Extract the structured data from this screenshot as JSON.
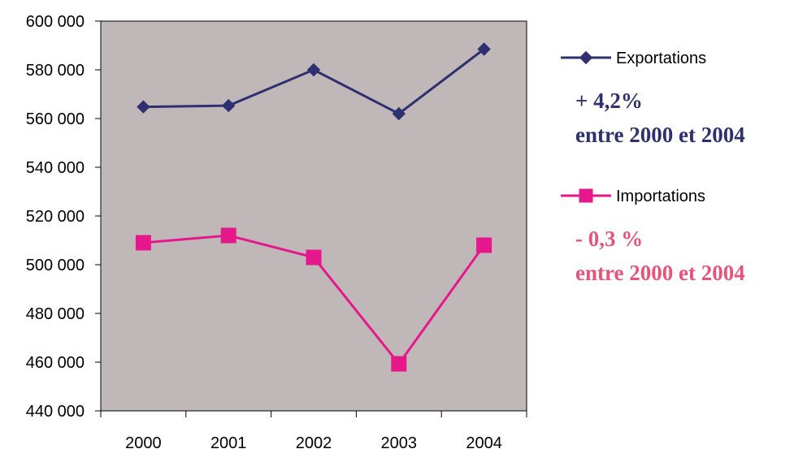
{
  "chart_data": {
    "type": "line",
    "title": "",
    "xlabel": "",
    "ylabel": "",
    "categories": [
      "2000",
      "2001",
      "2002",
      "2003",
      "2004"
    ],
    "ylim": [
      440000,
      600000
    ],
    "yticks": [
      440000,
      460000,
      480000,
      500000,
      520000,
      540000,
      560000,
      580000,
      600000
    ],
    "ytick_labels": [
      "440 000",
      "460 000",
      "480 000",
      "500 000",
      "520 000",
      "540 000",
      "560 000",
      "580 000",
      "600 000"
    ],
    "grid": false,
    "plot_background": "#c0b8b8",
    "legend_position": "right",
    "series": [
      {
        "name": "Exportations",
        "values": [
          564800,
          565300,
          580000,
          562000,
          588500
        ],
        "color": "#2e3070",
        "marker": "diamond"
      },
      {
        "name": "Importations",
        "values": [
          509000,
          512000,
          503000,
          459300,
          508000
        ],
        "color": "#e6178a",
        "marker": "square"
      }
    ],
    "annotations": [
      {
        "series": "Exportations",
        "lines": [
          "+ 4,2%",
          "entre 2000 et 2004"
        ],
        "color": "#2e3070"
      },
      {
        "series": "Importations",
        "lines": [
          "- 0,3 %",
          "entre 2000 et 2004"
        ],
        "color": "#e8537a"
      }
    ]
  }
}
